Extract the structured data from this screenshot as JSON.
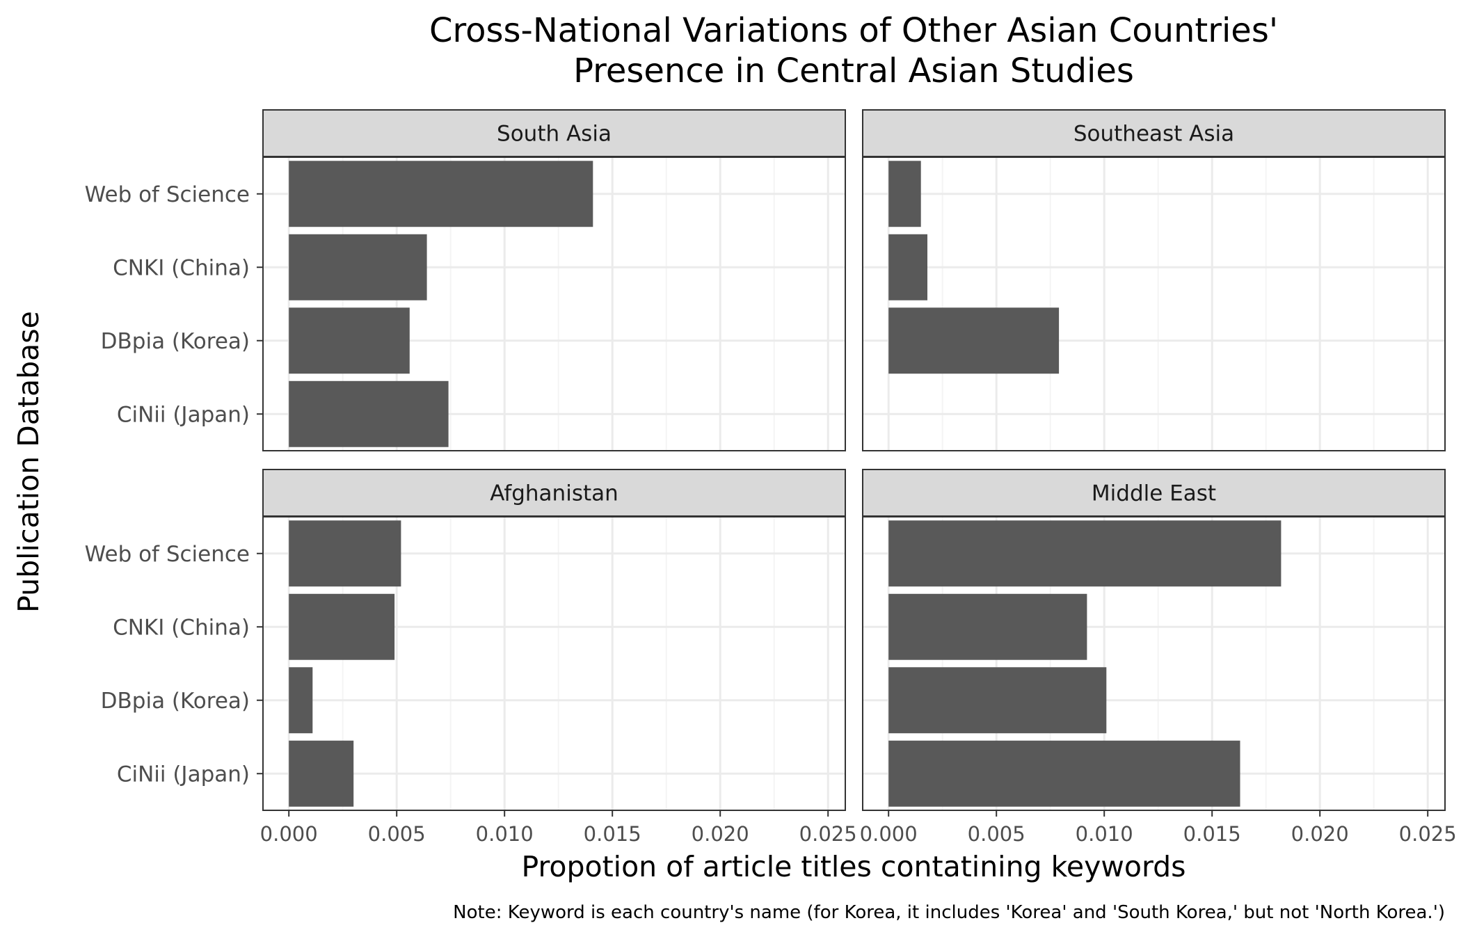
{
  "chart_data": {
    "type": "bar",
    "orientation": "horizontal",
    "title_lines": [
      "Cross-National Variations of Other Asian Countries'",
      "Presence in Central Asian Studies"
    ],
    "xlabel": "Propotion of article titles contatining keywords",
    "ylabel": "Publication Database",
    "caption": "Note: Keyword is each country's name (for Korea, it includes 'Korea' and 'South Korea,' but not 'North Korea.')",
    "categories": [
      "Web of Science",
      "CNKI (China)",
      "DBpia (Korea)",
      "CiNii (Japan)"
    ],
    "xlim": [
      -0.0012,
      0.0258
    ],
    "x_ticks": [
      0,
      0.005,
      0.01,
      0.015,
      0.02,
      0.025
    ],
    "x_tick_labels": [
      "0.000",
      "0.005",
      "0.010",
      "0.015",
      "0.020",
      "0.025"
    ],
    "x_minor_ticks": [
      0.0025,
      0.0075,
      0.0125,
      0.0175,
      0.0225
    ],
    "grid": true,
    "legend": "none",
    "colors": {
      "bar": "#595959",
      "strip_fill": "#d9d9d9",
      "strip_border": "#333333",
      "panel_border": "#333333",
      "grid_major": "#ebebeb",
      "grid_minor": "#f4f4f4",
      "axis_text": "#4d4d4d",
      "text": "#000000"
    },
    "facets": [
      {
        "name": "South Asia",
        "values": [
          0.0141,
          0.0064,
          0.0056,
          0.0074
        ]
      },
      {
        "name": "Southeast Asia",
        "values": [
          0.0015,
          0.0018,
          0.0079,
          0.0
        ]
      },
      {
        "name": "Afghanistan",
        "values": [
          0.0052,
          0.0049,
          0.0011,
          0.003
        ]
      },
      {
        "name": "Middle East",
        "values": [
          0.0182,
          0.0092,
          0.0101,
          0.0163
        ]
      }
    ]
  }
}
